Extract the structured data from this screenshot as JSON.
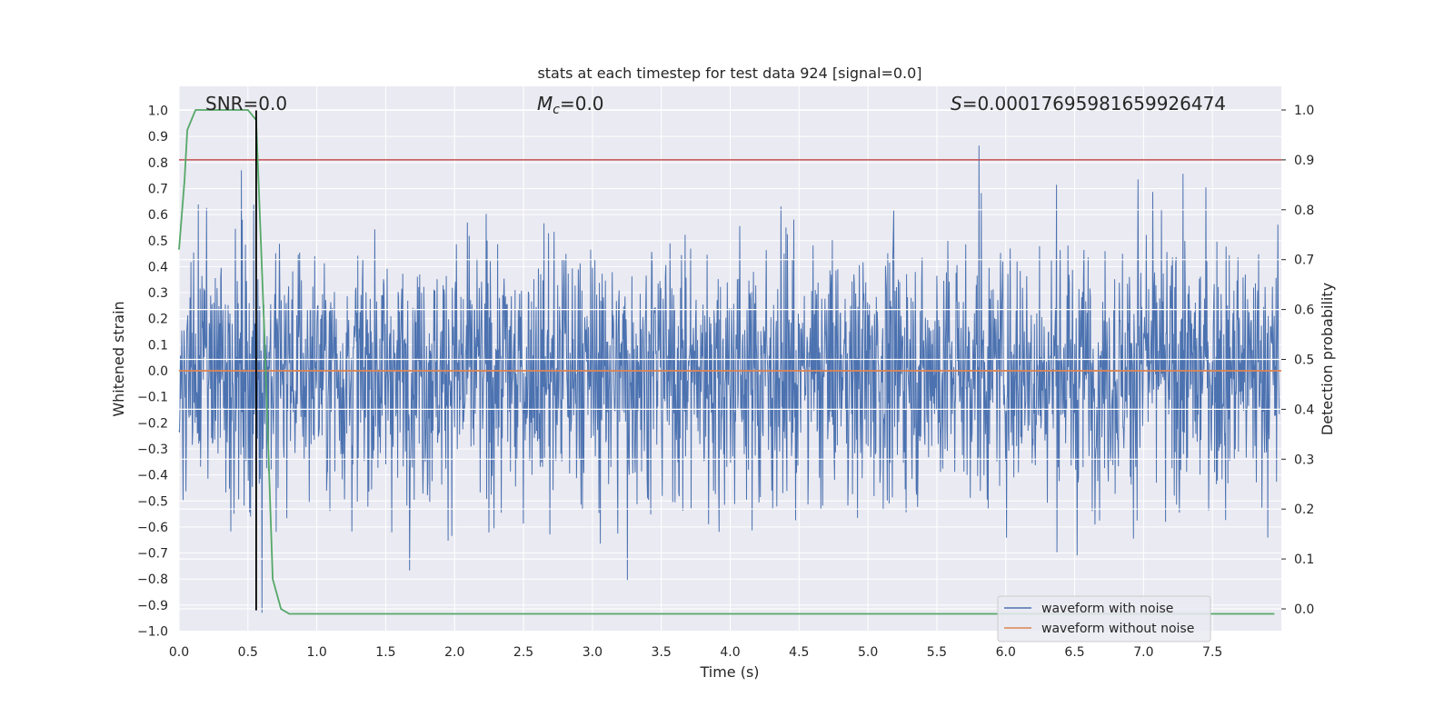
{
  "chart_data": {
    "type": "line",
    "title": "stats at each timestep for test data 924 [signal=0.0]",
    "xlabel": "Time (s)",
    "ylabel": "Whitened strain",
    "ylabel_right": "Detection probability",
    "xlim": [
      0.0,
      8.0
    ],
    "ylim": [
      -1.0,
      1.0
    ],
    "ylim_right": [
      -0.05,
      1.05
    ],
    "x_ticks": [
      "0.0",
      "0.5",
      "1.0",
      "1.5",
      "2.0",
      "2.5",
      "3.0",
      "3.5",
      "4.0",
      "4.5",
      "5.0",
      "5.5",
      "6.0",
      "6.5",
      "7.0",
      "7.5"
    ],
    "y_ticks": [
      "-1.0",
      "-0.9",
      "-0.8",
      "-0.7",
      "-0.6",
      "-0.5",
      "-0.4",
      "-0.3",
      "-0.2",
      "-0.1",
      "0.0",
      "0.1",
      "0.2",
      "0.3",
      "0.4",
      "0.5",
      "0.6",
      "0.7",
      "0.8",
      "0.9",
      "1.0"
    ],
    "y_ticks_right": [
      "0.0",
      "0.1",
      "0.2",
      "0.3",
      "0.4",
      "0.5",
      "0.6",
      "0.7",
      "0.8",
      "0.9",
      "1.0"
    ],
    "annotations": {
      "snr": "SNR=0.0",
      "mc": "=0.0",
      "mc_symbol": "M",
      "mc_sub": "c",
      "s": "=0.00017695981659926474",
      "s_symbol": "S"
    },
    "series": [
      {
        "name": "waveform with noise",
        "color": "#4c72b0",
        "noise_amplitude": 0.3,
        "max": 1.0,
        "min": -0.93
      },
      {
        "name": "waveform without noise",
        "color": "#dd8452",
        "constant": 0.0
      },
      {
        "color": "#55a868",
        "axis": "right",
        "x": [
          0.0,
          0.04,
          0.06,
          0.12,
          0.2,
          0.3,
          0.4,
          0.5,
          0.56,
          0.62,
          0.68,
          0.74,
          0.8,
          1.0,
          2.0,
          4.0,
          6.0,
          7.95
        ],
        "y": [
          0.72,
          0.86,
          0.96,
          1.0,
          1.0,
          1.0,
          1.0,
          1.0,
          0.98,
          0.55,
          0.06,
          0.0,
          -0.01,
          -0.01,
          -0.01,
          -0.01,
          -0.01,
          -0.01
        ]
      }
    ],
    "threshold_line": {
      "value": 0.9,
      "axis": "right",
      "color": "#c44e52"
    },
    "marker_line": {
      "x": 0.56,
      "y_range": [
        -0.92,
        1.0
      ],
      "color": "#000000"
    },
    "legend_position": "lower-right",
    "grid": true
  }
}
